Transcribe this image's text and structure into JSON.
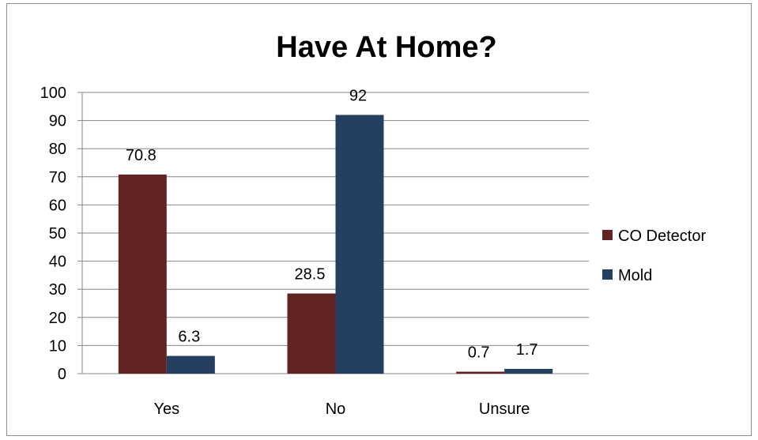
{
  "chart_data": {
    "type": "bar",
    "title": "Have At Home?",
    "xlabel": "",
    "ylabel": "",
    "categories": [
      "Yes",
      "No",
      "Unsure"
    ],
    "series": [
      {
        "name": "CO Detector",
        "values": [
          70.8,
          28.5,
          0.7
        ],
        "color": "#622423"
      },
      {
        "name": "Mold",
        "values": [
          6.3,
          92,
          1.7
        ],
        "color": "#243f60"
      }
    ],
    "ylim": [
      0,
      100
    ],
    "yticks": [
      "0",
      "10",
      "20",
      "30",
      "40",
      "50",
      "60",
      "70",
      "80",
      "90",
      "100"
    ],
    "data_labels": [
      [
        "70.8",
        "28.5",
        "0.7"
      ],
      [
        "6.3",
        "92",
        "1.7"
      ]
    ],
    "grid": true,
    "legend_position": "right"
  }
}
